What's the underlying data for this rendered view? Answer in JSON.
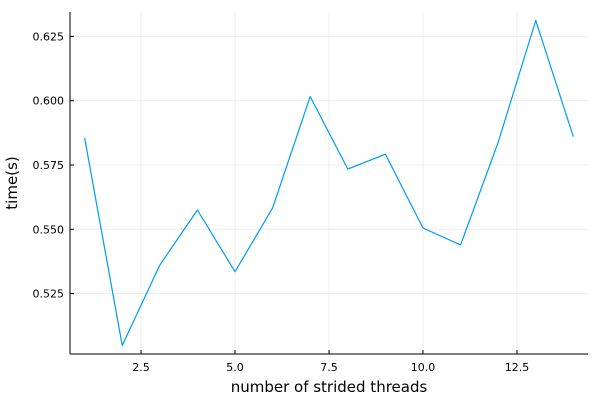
{
  "chart_data": {
    "type": "line",
    "xlabel": "number of strided threads",
    "ylabel": "time(s)",
    "xlim": [
      0.61,
      14.39
    ],
    "ylim": [
      0.5015,
      0.6345
    ],
    "xticks": [
      2.5,
      5.0,
      7.5,
      10.0,
      12.5
    ],
    "xtick_labels": [
      "2.5",
      "5.0",
      "7.5",
      "10.0",
      "12.5"
    ],
    "yticks": [
      0.525,
      0.55,
      0.575,
      0.6,
      0.625
    ],
    "ytick_labels": [
      "0.525",
      "0.550",
      "0.575",
      "0.600",
      "0.625"
    ],
    "grid": true,
    "legend": "none",
    "series": [
      {
        "color": "#009af9",
        "x": [
          1,
          2,
          3,
          4,
          5,
          6,
          7,
          8,
          9,
          10,
          11,
          12,
          13,
          14
        ],
        "y": [
          0.5855,
          0.5048,
          0.5361,
          0.5575,
          0.5335,
          0.5583,
          0.6016,
          0.5734,
          0.5792,
          0.5505,
          0.5439,
          0.5838,
          0.6312,
          0.586
        ]
      }
    ]
  }
}
